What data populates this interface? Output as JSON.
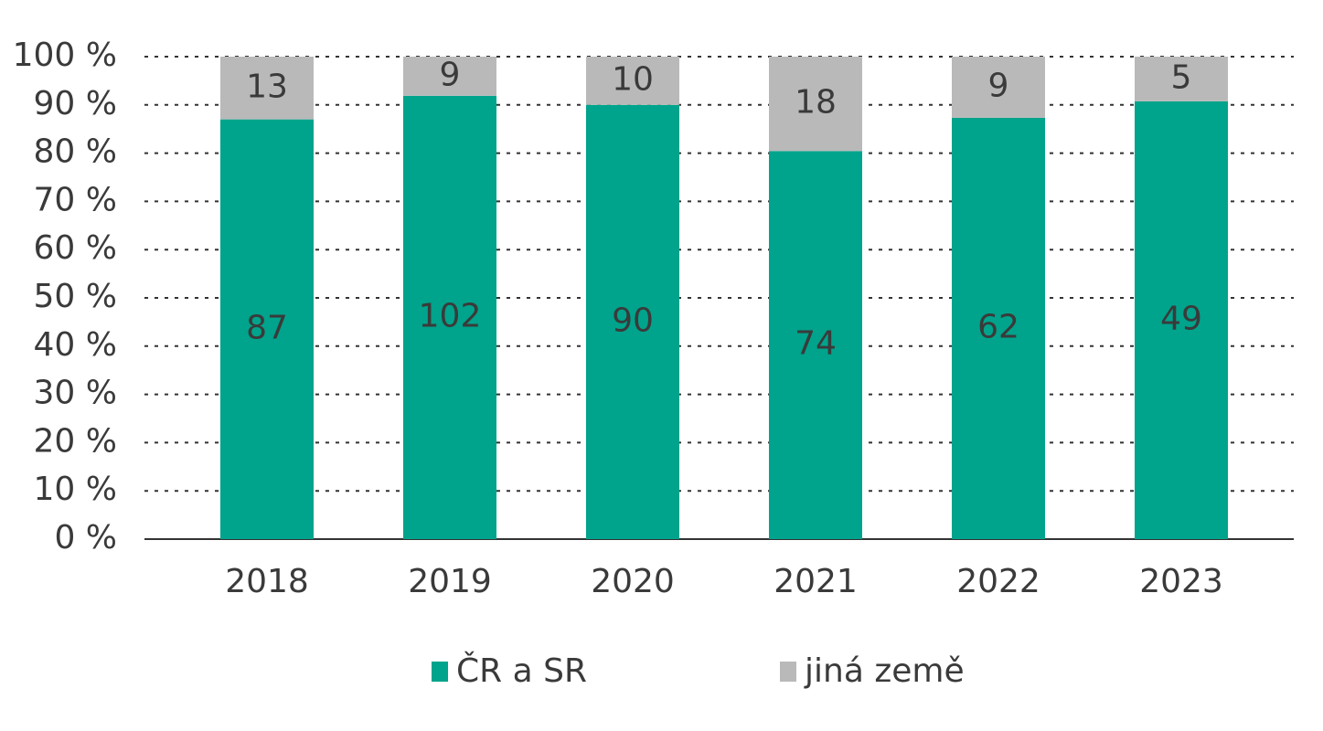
{
  "chart_data": {
    "type": "bar",
    "stacked": "percent",
    "categories": [
      "2018",
      "2019",
      "2020",
      "2021",
      "2022",
      "2023"
    ],
    "series": [
      {
        "name": "ČR a SR",
        "color": "#00a38b",
        "values": [
          87,
          102,
          90,
          74,
          62,
          49
        ]
      },
      {
        "name": "jiná země",
        "color": "#b9b9b9",
        "values": [
          13,
          9,
          10,
          18,
          9,
          5
        ]
      }
    ],
    "ylim": [
      0,
      100
    ],
    "yticks": [
      {
        "value": 0,
        "label": "0 %"
      },
      {
        "value": 10,
        "label": "10 %"
      },
      {
        "value": 20,
        "label": "20 %"
      },
      {
        "value": 30,
        "label": "30 %"
      },
      {
        "value": 40,
        "label": "40 %"
      },
      {
        "value": 50,
        "label": "50 %"
      },
      {
        "value": 60,
        "label": "60 %"
      },
      {
        "value": 70,
        "label": "70 %"
      },
      {
        "value": 80,
        "label": "80 %"
      },
      {
        "value": 90,
        "label": "90 %"
      },
      {
        "value": 100,
        "label": "100 %"
      }
    ],
    "grid": true,
    "legend": "bottom"
  }
}
